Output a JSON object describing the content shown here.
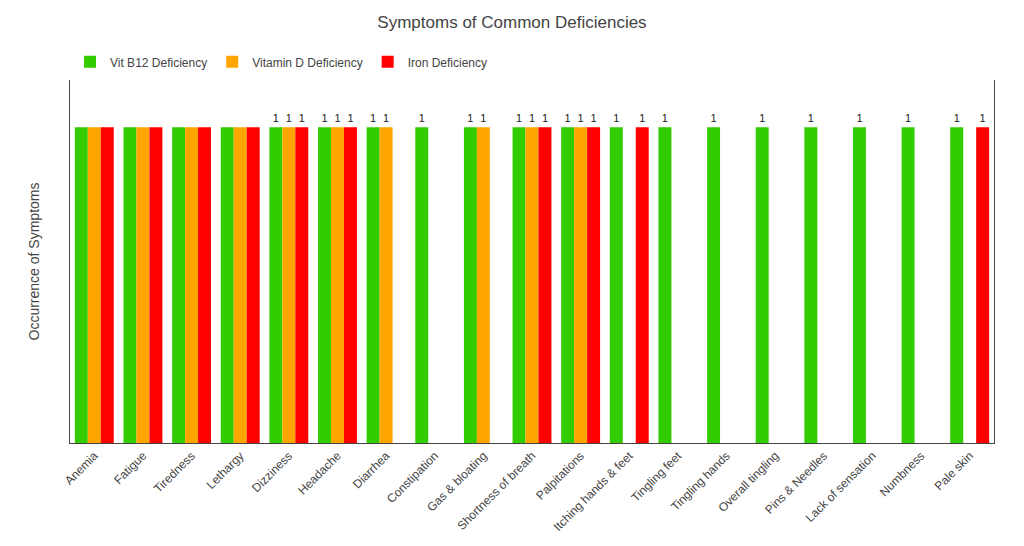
{
  "chart_data": {
    "type": "bar",
    "title": "Symptoms of Common Deficiencies",
    "ylabel": "Occurrence of Symptoms",
    "categories": [
      "Anemia",
      "Fatigue",
      "Tiredness",
      "Lethargy",
      "Dizziness",
      "Headache",
      "Diarrhea",
      "Constipation",
      "Gas & bloating",
      "Shortness of breath",
      "Palpitations",
      "Itching hands & feet",
      "Tingling feet",
      "Tingling hands",
      "Overall tingling",
      "Pins & Needles",
      "Lack of sensation",
      "Numbness",
      "Pale skin"
    ],
    "series": [
      {
        "name": "Vit B12 Deficiency",
        "color": "#33cc00",
        "values": [
          1,
          1,
          1,
          1,
          1,
          1,
          1,
          1,
          1,
          1,
          1,
          1,
          1,
          1,
          1,
          1,
          1,
          1,
          1
        ],
        "value_labels": [
          null,
          null,
          null,
          null,
          "1",
          "1",
          "1",
          "1",
          "1",
          "1",
          "1",
          "1",
          "1",
          "1",
          "1",
          "1",
          "1",
          "1",
          "1"
        ]
      },
      {
        "name": "Vitamin D Deficiency",
        "color": "#ffa500",
        "values": [
          1,
          1,
          1,
          1,
          1,
          1,
          1,
          0,
          1,
          1,
          1,
          0,
          0,
          0,
          0,
          0,
          0,
          0,
          0
        ],
        "value_labels": [
          null,
          null,
          null,
          null,
          "1",
          "1",
          "1",
          null,
          "1",
          "1",
          "1",
          null,
          null,
          null,
          null,
          null,
          null,
          null,
          null
        ]
      },
      {
        "name": "Iron Deficiency",
        "color": "#ff0000",
        "values": [
          1,
          1,
          1,
          1,
          1,
          1,
          0,
          0,
          0,
          1,
          1,
          1,
          0,
          0,
          0,
          0,
          0,
          0,
          1
        ],
        "value_labels": [
          null,
          null,
          null,
          null,
          "1",
          "1",
          null,
          null,
          null,
          "1",
          "1",
          "1",
          null,
          null,
          null,
          null,
          null,
          null,
          "1"
        ]
      }
    ],
    "ylim": [
      0,
      1.15
    ],
    "yticks": [],
    "tick_labels": "x",
    "grid": false,
    "legend": "upper left",
    "data_labels": true
  }
}
